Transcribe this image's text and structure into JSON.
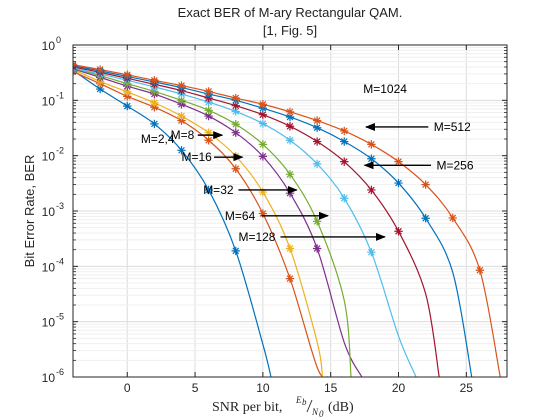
{
  "chart_data": {
    "type": "line",
    "title": [
      "Exact BER of M-ary Rectangular QAM.",
      "[1, Fig. 5]"
    ],
    "xlabel": "SNR per bit,",
    "xlabel_math": {
      "num": "E",
      "num_sub": "b",
      "den": "N",
      "den_sub": "0",
      "suffix": "(dB)"
    },
    "ylabel": "Bit Error Rate, BER",
    "xlim": [
      -4,
      28
    ],
    "ylim": [
      1e-06,
      1
    ],
    "yscale": "log",
    "grid": true,
    "xticks": [
      "0",
      "5",
      "10",
      "15",
      "20",
      "25"
    ],
    "xtick_values": [
      0,
      5,
      10,
      15,
      20,
      25
    ],
    "yticks": [
      {
        "base": "10",
        "exp": "0"
      },
      {
        "base": "10",
        "exp": "-1"
      },
      {
        "base": "10",
        "exp": "-2"
      },
      {
        "base": "10",
        "exp": "-3"
      },
      {
        "base": "10",
        "exp": "-4"
      },
      {
        "base": "10",
        "exp": "-5"
      },
      {
        "base": "10",
        "exp": "-6"
      }
    ],
    "ytick_values": [
      1,
      0.1,
      0.01,
      0.001,
      0.0001,
      1e-05,
      1e-06
    ],
    "series": [
      {
        "color": "#0072BD",
        "x": [
          -4,
          -2,
          0,
          2,
          4,
          6,
          8,
          10,
          10.6
        ],
        "y": [
          0.35,
          0.16,
          0.0787,
          0.0375,
          0.0125,
          0.0024,
          0.00019,
          3.9e-06,
          1e-06
        ]
      },
      {
        "color": "#D95319",
        "x": [
          -4,
          -2,
          0,
          2,
          4,
          6,
          8,
          10,
          12,
          14,
          14.8
        ],
        "y": [
          0.33,
          0.2,
          0.118,
          0.075,
          0.043,
          0.019,
          0.0058,
          0.0009,
          6e-05,
          1.5e-06,
          1e-06
        ]
      },
      {
        "color": "#EDB120",
        "x": [
          -4,
          -2,
          0,
          2,
          4,
          6,
          8,
          10,
          12,
          14,
          14.4
        ],
        "y": [
          0.36,
          0.22,
          0.142,
          0.09,
          0.052,
          0.026,
          0.0098,
          0.0022,
          0.00021,
          4.3e-06,
          1e-06
        ]
      },
      {
        "color": "#7E2F8E",
        "x": [
          -4,
          -2,
          0,
          2,
          4,
          6,
          8,
          10,
          12,
          14,
          16,
          17.3
        ],
        "y": [
          0.37,
          0.26,
          0.18,
          0.13,
          0.085,
          0.052,
          0.026,
          0.0097,
          0.0021,
          0.00021,
          4.2e-06,
          1e-06
        ]
      },
      {
        "color": "#77AC30",
        "x": [
          -4,
          -2,
          0,
          2,
          4,
          6,
          8,
          10,
          12,
          14,
          16,
          16.5
        ],
        "y": [
          0.38,
          0.28,
          0.2,
          0.145,
          0.1,
          0.066,
          0.037,
          0.016,
          0.0046,
          0.00065,
          2.4e-05,
          1e-06
        ]
      },
      {
        "color": "#4DBEEE",
        "x": [
          -4,
          -2,
          0,
          2,
          4,
          6,
          8,
          10,
          12,
          14,
          16,
          18,
          20,
          21.3
        ],
        "y": [
          0.38,
          0.3,
          0.23,
          0.175,
          0.13,
          0.093,
          0.063,
          0.038,
          0.019,
          0.0071,
          0.0017,
          0.00018,
          5.5e-06,
          1e-06
        ]
      },
      {
        "color": "#A2142F",
        "x": [
          -4,
          -2,
          0,
          2,
          4,
          6,
          8,
          10,
          12,
          14,
          16,
          18,
          20,
          22,
          23
        ],
        "y": [
          0.4,
          0.32,
          0.25,
          0.195,
          0.15,
          0.11,
          0.08,
          0.055,
          0.034,
          0.018,
          0.0078,
          0.0024,
          0.00043,
          3.2e-05,
          1e-06
        ]
      },
      {
        "color": "#0072BD",
        "x": [
          -4,
          -2,
          0,
          2,
          4,
          6,
          8,
          10,
          12,
          14,
          16,
          18,
          20,
          22,
          24,
          25.4
        ],
        "y": [
          0.42,
          0.34,
          0.27,
          0.215,
          0.17,
          0.13,
          0.1,
          0.072,
          0.05,
          0.032,
          0.018,
          0.0088,
          0.0032,
          0.00074,
          7.8e-05,
          1e-06
        ]
      },
      {
        "color": "#D95319",
        "x": [
          -4,
          -2,
          0,
          2,
          4,
          6,
          8,
          10,
          12,
          14,
          16,
          18,
          20,
          22,
          24,
          26,
          27.5
        ],
        "y": [
          0.44,
          0.36,
          0.29,
          0.23,
          0.185,
          0.145,
          0.11,
          0.085,
          0.062,
          0.043,
          0.028,
          0.016,
          0.0078,
          0.003,
          0.00075,
          8.5e-05,
          1e-06
        ]
      }
    ],
    "markers": [
      {
        "color": "#0072BD",
        "x": [
          -4,
          -2,
          0,
          2,
          4,
          6,
          8
        ]
      },
      {
        "color": "#D95319",
        "x": [
          -4,
          -2,
          0,
          2,
          4,
          6,
          8,
          10,
          12
        ]
      },
      {
        "color": "#EDB120",
        "x": [
          -4,
          -2,
          0,
          2,
          4,
          6,
          8,
          10,
          12
        ]
      },
      {
        "color": "#7E2F8E",
        "x": [
          -4,
          -2,
          0,
          2,
          4,
          6,
          8,
          10,
          12,
          14
        ]
      },
      {
        "color": "#77AC30",
        "x": [
          -4,
          -2,
          0,
          2,
          4,
          6,
          8,
          10,
          12,
          14
        ]
      },
      {
        "color": "#4DBEEE",
        "x": [
          -4,
          -2,
          0,
          2,
          4,
          6,
          8,
          10,
          12,
          14,
          16,
          18
        ]
      },
      {
        "color": "#A2142F",
        "x": [
          -4,
          -2,
          0,
          2,
          4,
          6,
          8,
          10,
          12,
          14,
          16,
          18,
          20
        ]
      },
      {
        "color": "#0072BD",
        "x": [
          -4,
          -2,
          0,
          2,
          4,
          6,
          8,
          10,
          12,
          14,
          16,
          18,
          20,
          22
        ]
      },
      {
        "color": "#D95319",
        "x": [
          -4,
          -2,
          0,
          2,
          4,
          6,
          8,
          10,
          12,
          14,
          16,
          18,
          20,
          22,
          24,
          26
        ]
      }
    ],
    "annotations": [
      {
        "text": "M=2,4",
        "text_x": 1.0,
        "text_y": 0.02,
        "arrow": null
      },
      {
        "text": "M=8",
        "text_x": 3.2,
        "text_y": 0.0235,
        "arrow": {
          "from": [
            5.2,
            0.0235
          ],
          "to": [
            7.0,
            0.0235
          ]
        }
      },
      {
        "text": "M=16",
        "text_x": 4.0,
        "text_y": 0.0094,
        "arrow": {
          "from": [
            6.4,
            0.0094
          ],
          "to": [
            8.5,
            0.0094
          ]
        }
      },
      {
        "text": "M=32",
        "text_x": 5.6,
        "text_y": 0.0024,
        "arrow": {
          "from": [
            8.2,
            0.0024
          ],
          "to": [
            12.5,
            0.0024
          ]
        }
      },
      {
        "text": "M=64",
        "text_x": 7.2,
        "text_y": 0.00082,
        "arrow": {
          "from": [
            9.9,
            0.00082
          ],
          "to": [
            14.8,
            0.00082
          ]
        }
      },
      {
        "text": "M=128",
        "text_x": 8.2,
        "text_y": 0.00034,
        "arrow": {
          "from": [
            11.3,
            0.00034
          ],
          "to": [
            19.0,
            0.00034
          ]
        }
      },
      {
        "text": "M=256",
        "text_x": 22.8,
        "text_y": 0.0067,
        "arrow": {
          "from": [
            22.4,
            0.0067
          ],
          "to": [
            17.5,
            0.0067
          ]
        }
      },
      {
        "text": "M=512",
        "text_x": 22.6,
        "text_y": 0.033,
        "arrow": {
          "from": [
            22.2,
            0.033
          ],
          "to": [
            17.6,
            0.033
          ]
        }
      },
      {
        "text": "M=1024",
        "text_x": 17.4,
        "text_y": 0.16,
        "arrow": null
      }
    ]
  }
}
